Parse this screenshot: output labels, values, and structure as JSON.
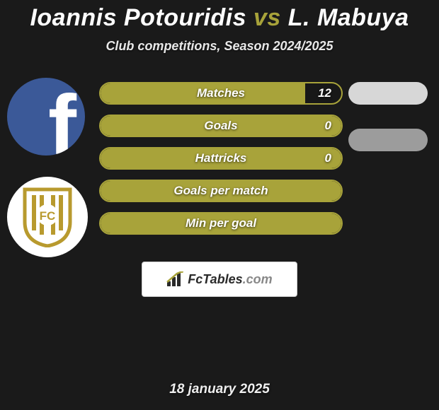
{
  "title": {
    "player1": "Ioannis Potouridis",
    "vs": "vs",
    "player2": "L. Mabuya"
  },
  "subtitle": "Club competitions, Season 2024/2025",
  "colors": {
    "accent": "#a8a33a",
    "background": "#1a1a1a",
    "pill_light": "#d7d7d7",
    "pill_dark": "#9c9c9c",
    "fb_blue": "#3b5998",
    "text": "#ffffff"
  },
  "layout": {
    "stat_row_height": 32,
    "stat_row_gap": 14,
    "stat_border_radius": 16,
    "stats_width": 344
  },
  "stats": [
    {
      "label": "Matches",
      "value": "12",
      "fill_pct": 85,
      "show_value": true,
      "right_pill": "light"
    },
    {
      "label": "Goals",
      "value": "0",
      "fill_pct": 100,
      "show_value": true,
      "right_pill": "dark"
    },
    {
      "label": "Hattricks",
      "value": "0",
      "fill_pct": 100,
      "show_value": true,
      "right_pill": null
    },
    {
      "label": "Goals per match",
      "value": "",
      "fill_pct": 100,
      "show_value": false,
      "right_pill": null
    },
    {
      "label": "Min per goal",
      "value": "",
      "fill_pct": 100,
      "show_value": false,
      "right_pill": null
    }
  ],
  "footer_brand": "FcTables",
  "footer_domain": ".com",
  "date": "18 january 2025",
  "side_icons": {
    "top": "facebook-logo",
    "bottom": "club-crest"
  }
}
